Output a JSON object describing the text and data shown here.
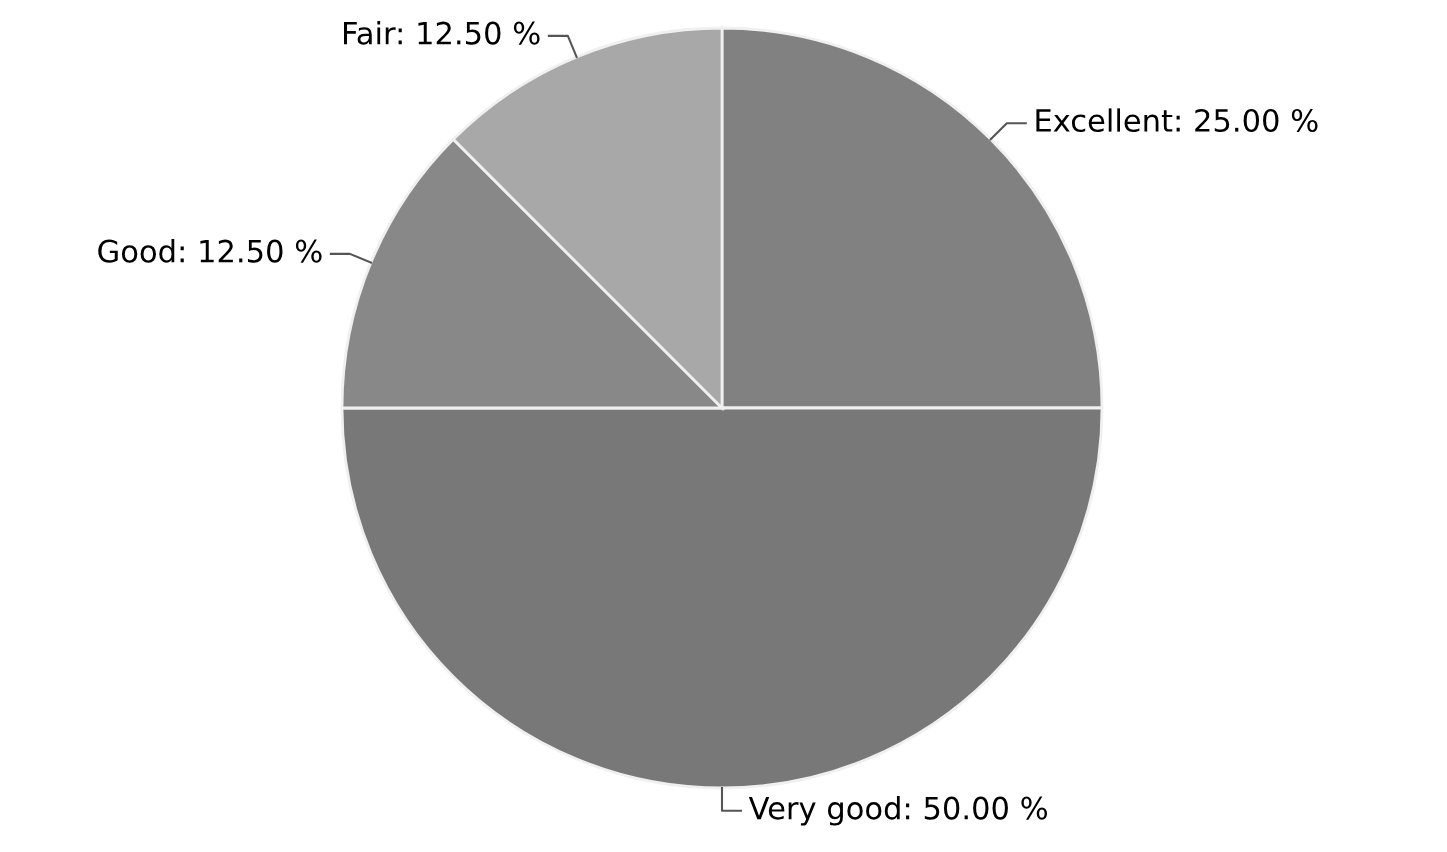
{
  "chart_data": {
    "type": "pie",
    "categories": [
      "Excellent",
      "Very good",
      "Good",
      "Fair"
    ],
    "values": [
      25,
      50,
      12.5,
      12.5
    ],
    "value_labels": [
      ": 25.00 %",
      ": 50.00 %",
      ": 12.50 %",
      ": 12.50 %"
    ],
    "colors": [
      "#818181",
      "#787878",
      "#888888",
      "#a8a8a8"
    ]
  }
}
